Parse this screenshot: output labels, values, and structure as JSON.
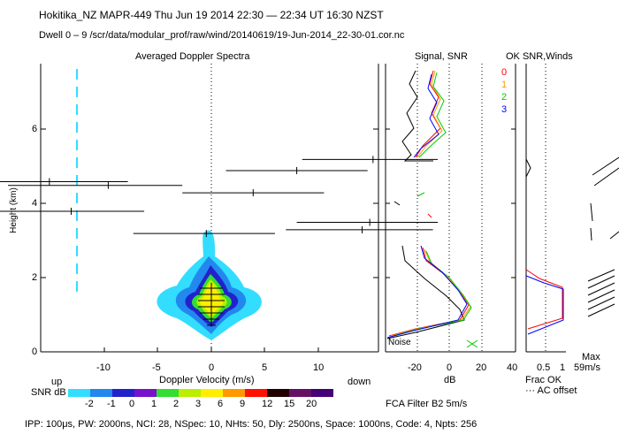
{
  "header": {
    "line1": "Hokitika_NZ  MAPR-449  Thu Jun 19 2014 22:30 — 22:34 UT 16:30 NZST",
    "line2": "Dwell  0 –  9   /scr/data/modular_prof/raw/wind/20140619/19-Jun-2014_22-30-01.cor.nc"
  },
  "panels": {
    "spectra_title": "Averaged Doppler Spectra",
    "signal_title": "Signal, SNR",
    "winds_title": "OK SNR,Winds",
    "y_axis_label": "Height (km)",
    "y_ticks": [
      "0",
      "2",
      "4",
      "6"
    ],
    "x_axis_label": "Doppler Velocity (m/s)",
    "x_ticks": [
      "-10",
      "-5",
      "0",
      "5",
      "10"
    ],
    "up_label": "up",
    "down_label": "down",
    "db_label": "dB",
    "db_ticks": [
      "-20",
      "0",
      "20",
      "40"
    ],
    "frac_ticks": [
      "0.5",
      "1"
    ],
    "frac_ok_label": "Frac OK",
    "ac_offset_label": "··· AC offset",
    "max_label": "Max",
    "max_value": "59m/s",
    "noise_label": "Noise",
    "fca_label": "FCA Filter B2  5m/s"
  },
  "legend": {
    "dwell_labels": [
      {
        "label": "0",
        "color": "#ff0000"
      },
      {
        "label": "1",
        "color": "#ff9900"
      },
      {
        "label": "2",
        "color": "#00cc00"
      },
      {
        "label": "3",
        "color": "#0000ff"
      }
    ]
  },
  "colorbar": {
    "label": "SNR dB",
    "ticks": [
      "-2",
      "-1",
      "0",
      "1",
      "2",
      "3",
      "6",
      "9",
      "12",
      "15",
      "20"
    ],
    "colors": [
      "#33ddff",
      "#2288ee",
      "#2222cc",
      "#7711cc",
      "#33dd33",
      "#bbee00",
      "#ffee00",
      "#ff9900",
      "#ff1100",
      "#220000",
      "#661166",
      "#440077"
    ]
  },
  "footer": {
    "params": "IPP: 100μs,  PW: 2000ns,  NCI:  28,  NSpec: 10,  NHts: 50,  Dly: 2500ns,  Space: 1000ns,  Code: 4,  Npts: 256"
  },
  "chart_data": {
    "type": "heatmap",
    "title": "Averaged Doppler Spectra",
    "xlabel": "Doppler Velocity (m/s)",
    "ylabel": "Height (km)",
    "xlim": [
      -16,
      15
    ],
    "ylim": [
      0,
      7.6
    ],
    "spectral_peaks": [
      {
        "height_km": 5.2,
        "velocity": 14.5,
        "width_min": 8,
        "width_max": 21
      },
      {
        "height_km": 4.9,
        "velocity": 7.5,
        "width_min": 1,
        "width_max": 14
      },
      {
        "height_km": 4.6,
        "velocity": -15.2,
        "width_min": -20,
        "width_max": -8
      },
      {
        "height_km": 4.5,
        "velocity": -9.8,
        "width_min": -19,
        "width_max": -3
      },
      {
        "height_km": 4.3,
        "velocity": 3.5,
        "width_min": -3,
        "width_max": 10
      },
      {
        "height_km": 3.8,
        "velocity": -13.2,
        "width_min": -20,
        "width_max": -6.5
      },
      {
        "height_km": 3.5,
        "velocity": 14.2,
        "width_min": 7.5,
        "width_max": 21
      },
      {
        "height_km": 3.3,
        "velocity": 13.5,
        "width_min": 6.5,
        "width_max": 20
      },
      {
        "height_km": 3.2,
        "velocity": -0.8,
        "width_min": -7.5,
        "width_max": 5.5
      }
    ],
    "noise_line_velocity": -12.5
  }
}
